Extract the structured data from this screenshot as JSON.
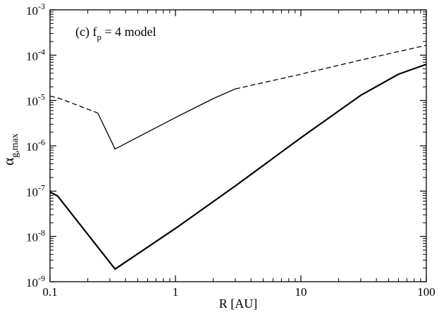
{
  "chart_data": {
    "type": "line",
    "annotation": {
      "main": "(c) f",
      "sub": "p",
      "rest": " = 4 model"
    },
    "xlabel": "R [AU]",
    "ylabel": {
      "main": "α",
      "sub": "g,max"
    },
    "xscale": "log",
    "yscale": "log",
    "xlim": [
      0.1,
      100
    ],
    "ylim": [
      1e-09,
      0.001
    ],
    "grid": false,
    "x_ticks": [
      {
        "value": 0.1,
        "label": "0.1"
      },
      {
        "value": 1,
        "label": "1"
      },
      {
        "value": 10,
        "label": "10"
      },
      {
        "value": 100,
        "label": "100"
      }
    ],
    "y_ticks": [
      {
        "value": 1e-09,
        "base": "10",
        "exp": "-9"
      },
      {
        "value": 1e-08,
        "base": "10",
        "exp": "-8"
      },
      {
        "value": 1e-07,
        "base": "10",
        "exp": "-7"
      },
      {
        "value": 1e-06,
        "base": "10",
        "exp": "-6"
      },
      {
        "value": 1e-05,
        "base": "10",
        "exp": "-5"
      },
      {
        "value": 0.0001,
        "base": "10",
        "exp": "-4"
      },
      {
        "value": 0.001,
        "base": "10",
        "exp": "-3"
      }
    ],
    "series": [
      {
        "style": "solid",
        "width": 2.2,
        "x": [
          0.1,
          0.115,
          0.33,
          1,
          3,
          10,
          30,
          60,
          100
        ],
        "y": [
          9.5e-08,
          7.8e-08,
          1.9e-09,
          1.5e-08,
          1.3e-07,
          1.5e-06,
          1.3e-05,
          3.8e-05,
          6.3e-05
        ]
      },
      {
        "style": "dashed",
        "width": 1.3,
        "x": [
          0.1,
          0.12,
          0.24
        ],
        "y": [
          1.25e-05,
          1.1e-05,
          5.3e-06
        ]
      },
      {
        "style": "solid",
        "width": 1.3,
        "x": [
          0.24,
          0.33,
          1,
          2,
          3
        ],
        "y": [
          5.3e-06,
          8.5e-07,
          4.2e-06,
          1.1e-05,
          1.8e-05
        ]
      },
      {
        "style": "dashed",
        "width": 1.3,
        "x": [
          3,
          10,
          30,
          100
        ],
        "y": [
          1.8e-05,
          3.8e-05,
          7.8e-05,
          0.000165
        ]
      }
    ]
  }
}
